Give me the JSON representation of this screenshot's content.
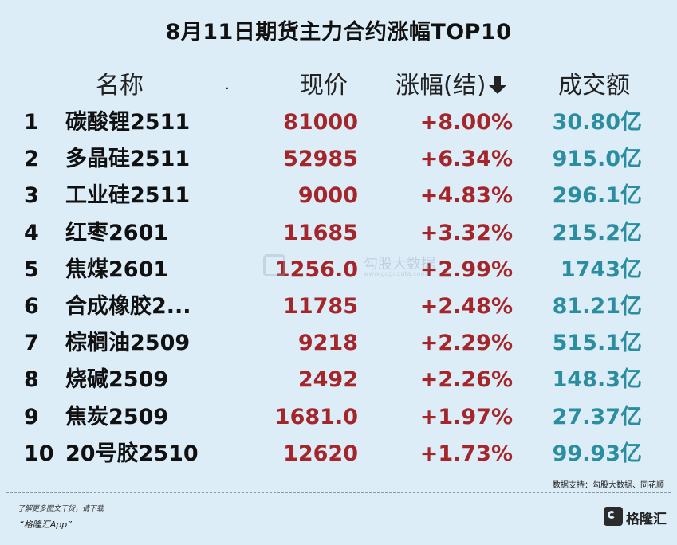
{
  "title": "8月11日期货主力合约涨幅TOP10",
  "header": {
    "name": "名称",
    "dot": ".",
    "price": "现价",
    "change": "涨幅(结)",
    "volume": "成交额"
  },
  "rows": [
    {
      "rank": "1",
      "name": "碳酸锂2511",
      "price": "81000",
      "change": "+8.00%",
      "volume": "30.80亿"
    },
    {
      "rank": "2",
      "name": "多晶硅2511",
      "price": "52985",
      "change": "+6.34%",
      "volume": "915.0亿"
    },
    {
      "rank": "3",
      "name": "工业硅2511",
      "price": "9000",
      "change": "+4.83%",
      "volume": "296.1亿"
    },
    {
      "rank": "4",
      "name": "红枣2601",
      "price": "11685",
      "change": "+3.32%",
      "volume": "215.2亿"
    },
    {
      "rank": "5",
      "name": "焦煤2601",
      "price": "1256.0",
      "change": "+2.99%",
      "volume": "1743亿"
    },
    {
      "rank": "6",
      "name": "合成橡胶2...",
      "price": "11785",
      "change": "+2.48%",
      "volume": "81.21亿"
    },
    {
      "rank": "7",
      "name": "棕榈油2509",
      "price": "9218",
      "change": "+2.29%",
      "volume": "515.1亿"
    },
    {
      "rank": "8",
      "name": "烧碱2509",
      "price": "2492",
      "change": "+2.26%",
      "volume": "148.3亿"
    },
    {
      "rank": "9",
      "name": "焦炭2509",
      "price": "1681.0",
      "change": "+1.97%",
      "volume": "27.37亿"
    },
    {
      "rank": "10",
      "name": "20号胶2510",
      "price": "12620",
      "change": "+1.73%",
      "volume": "99.93亿"
    }
  ],
  "watermark": {
    "text": "勾股大数据",
    "url": "www.gogudata.com"
  },
  "source": "数据支持：勾股大数据、同花顺",
  "footer": {
    "line1": "了解更多图文干货，请下载",
    "line2": "“格隆汇App”",
    "logo": "格隆汇"
  },
  "colors": {
    "background": "#dcedf8",
    "price": "#a4262a",
    "change": "#a4262a",
    "volume": "#2a8ea0"
  }
}
